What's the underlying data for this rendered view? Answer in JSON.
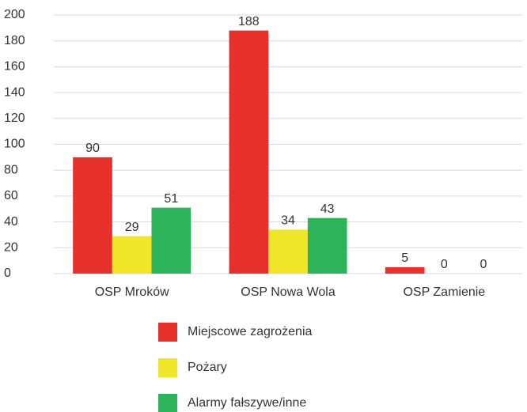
{
  "chart_data": {
    "type": "bar",
    "categories": [
      "OSP Mroków",
      "OSP Nowa Wola",
      "OSP Zamienie"
    ],
    "series": [
      {
        "name": "Miejscowe zagrożenia",
        "color": "#e8302a",
        "values": [
          90,
          188,
          5
        ]
      },
      {
        "name": "Pożary",
        "color": "#f0e629",
        "values": [
          29,
          34,
          0
        ]
      },
      {
        "name": "Alarmy fałszywe/inne",
        "color": "#2db45a",
        "values": [
          51,
          43,
          0
        ]
      }
    ],
    "ylim": [
      0,
      200
    ],
    "yticks": [
      0,
      20,
      40,
      60,
      80,
      100,
      120,
      140,
      160,
      180,
      200
    ],
    "grid": true,
    "legend": "bottom"
  }
}
